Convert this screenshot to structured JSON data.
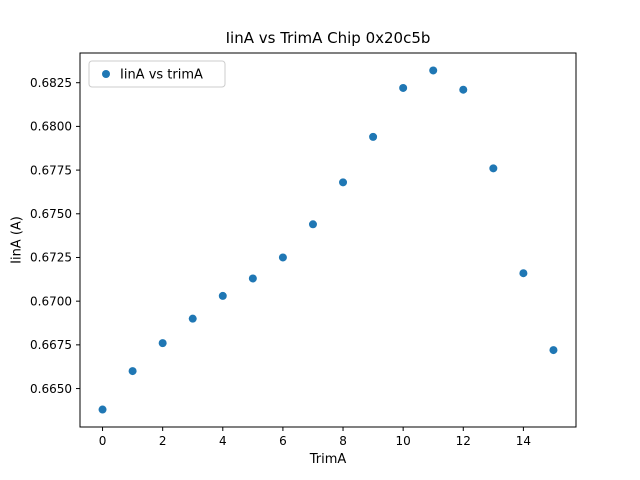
{
  "chart_data": {
    "type": "scatter",
    "title": "IinA vs TrimA Chip 0x20c5b",
    "xlabel": "TrimA",
    "ylabel": "IinA (A)",
    "legend": [
      "IinA vs trimA"
    ],
    "legend_position": "upper left",
    "marker": {
      "shape": "circle",
      "color": "#1f77b4"
    },
    "x": [
      0,
      1,
      2,
      3,
      4,
      5,
      6,
      7,
      8,
      9,
      10,
      11,
      12,
      13,
      14,
      15
    ],
    "y": [
      0.6638,
      0.666,
      0.6676,
      0.669,
      0.6703,
      0.6713,
      0.6725,
      0.6744,
      0.6768,
      0.6794,
      0.6822,
      0.6832,
      0.6821,
      0.6776,
      0.6716,
      0.6672
    ],
    "xlim": [
      -0.75,
      15.75
    ],
    "ylim": [
      0.6628,
      0.6842
    ],
    "xticks": [
      0,
      2,
      4,
      6,
      8,
      10,
      12,
      14
    ],
    "xtick_labels": [
      "0",
      "2",
      "4",
      "6",
      "8",
      "10",
      "12",
      "14"
    ],
    "yticks": [
      0.665,
      0.6675,
      0.67,
      0.6725,
      0.675,
      0.6775,
      0.68,
      0.6825
    ],
    "ytick_labels": [
      "0.6650",
      "0.6675",
      "0.6700",
      "0.6725",
      "0.6750",
      "0.6775",
      "0.6800",
      "0.6825"
    ],
    "grid": false,
    "background": "#ffffff",
    "axes_color": "#000000",
    "legend_border_color": "#cccccc"
  }
}
